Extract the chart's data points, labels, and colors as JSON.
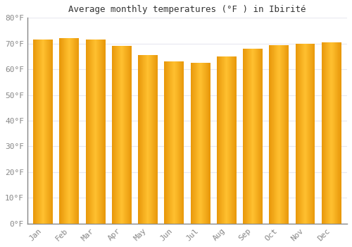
{
  "title": "Average monthly temperatures (°F ) in Ibirité",
  "months": [
    "Jan",
    "Feb",
    "Mar",
    "Apr",
    "May",
    "Jun",
    "Jul",
    "Aug",
    "Sep",
    "Oct",
    "Nov",
    "Dec"
  ],
  "values": [
    71.5,
    72.0,
    71.5,
    69.0,
    65.5,
    63.0,
    62.5,
    65.0,
    68.0,
    69.5,
    70.0,
    70.5
  ],
  "bar_color_left": "#E8980A",
  "bar_color_center": "#FFC030",
  "bar_color_right": "#E8980A",
  "ylim": [
    0,
    80
  ],
  "yticks": [
    0,
    10,
    20,
    30,
    40,
    50,
    60,
    70,
    80
  ],
  "ytick_labels": [
    "0°F",
    "10°F",
    "20°F",
    "30°F",
    "40°F",
    "50°F",
    "60°F",
    "70°F",
    "80°F"
  ],
  "background_color": "#FFFFFF",
  "grid_color": "#E8E8F0",
  "bar_width": 0.75,
  "font_family": "monospace",
  "title_fontsize": 9,
  "tick_fontsize": 8,
  "tick_color": "#888888"
}
